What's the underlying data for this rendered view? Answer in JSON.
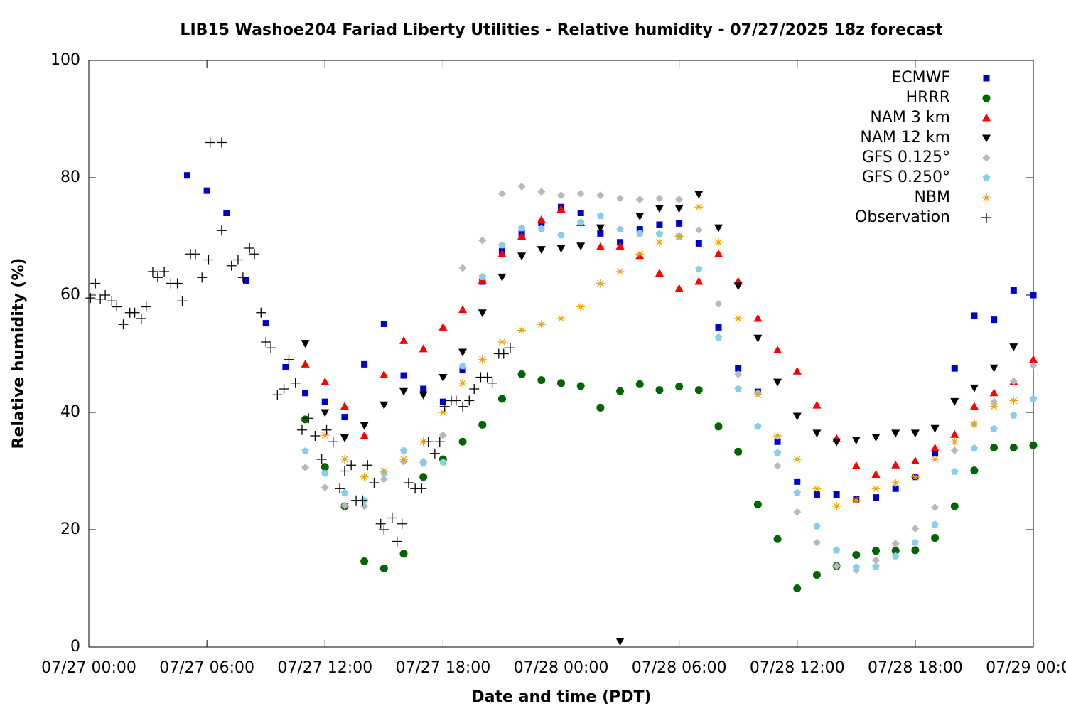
{
  "chart_data": {
    "type": "scatter",
    "title": "LIB15 Washoe204 Fariad Liberty Utilities - Relative humidity - 07/27/2025 18z forecast",
    "x_label": "Date and time (PDT)",
    "y_label": "Relative humidity (%)",
    "xlim": [
      "07/27 00:00",
      "07/29 00:00"
    ],
    "xticks": [
      "07/27 00:00",
      "07/27 06:00",
      "07/27 12:00",
      "07/27 18:00",
      "07/28 00:00",
      "07/28 06:00",
      "07/28 12:00",
      "07/28 18:00",
      "07/29 00:00"
    ],
    "ylim": [
      0,
      100
    ],
    "yticks": [
      0,
      20,
      40,
      60,
      80,
      100
    ],
    "grid": false,
    "legend": "top-right",
    "x": [
      "07/27 05:00",
      "07/27 06:00",
      "07/27 07:00",
      "07/27 08:00",
      "07/27 09:00",
      "07/27 10:00",
      "07/27 11:00",
      "07/27 12:00",
      "07/27 13:00",
      "07/27 14:00",
      "07/27 15:00",
      "07/27 16:00",
      "07/27 17:00",
      "07/27 18:00",
      "07/27 19:00",
      "07/27 20:00",
      "07/27 21:00",
      "07/27 22:00",
      "07/27 23:00",
      "07/28 00:00",
      "07/28 01:00",
      "07/28 02:00",
      "07/28 03:00",
      "07/28 04:00",
      "07/28 05:00",
      "07/28 06:00",
      "07/28 07:00",
      "07/28 08:00",
      "07/28 09:00",
      "07/28 10:00",
      "07/28 11:00",
      "07/28 12:00",
      "07/28 13:00",
      "07/28 14:00",
      "07/28 15:00",
      "07/28 16:00",
      "07/28 17:00",
      "07/28 18:00",
      "07/28 19:00",
      "07/28 20:00",
      "07/28 21:00",
      "07/28 22:00",
      "07/28 23:00",
      "07/29 00:00"
    ],
    "series": [
      {
        "name": "ECMWF",
        "color": "#0000cc",
        "marker": "square",
        "values": [
          80.4,
          77.8,
          74,
          62.5,
          55.2,
          47.7,
          43.3,
          41.8,
          39.2,
          48.2,
          55.1,
          46.3,
          44,
          41.8,
          47.2,
          62.3,
          67.5,
          70.5,
          72.3,
          75,
          74,
          70.5,
          69,
          71.2,
          72,
          72.2,
          68.8,
          54.5,
          47.5,
          43.5,
          35,
          28.2,
          26,
          26,
          25.2,
          25.5,
          27,
          29,
          33,
          47.5,
          56.5,
          55.8,
          60.8,
          60
        ]
      },
      {
        "name": "HRRR",
        "color": "#006400",
        "marker": "circle",
        "values": [
          null,
          null,
          null,
          null,
          null,
          null,
          38.8,
          30.7,
          24,
          14.6,
          13.4,
          15.9,
          29,
          32,
          35,
          37.9,
          42.3,
          46.5,
          45.5,
          45,
          44.5,
          40.8,
          43.6,
          44.8,
          43.8,
          44.4,
          43.8,
          37.6,
          33.3,
          24.3,
          18.4,
          10,
          12.3,
          13.8,
          15.7,
          16.4,
          16.4,
          16.5,
          18.6,
          24,
          30.1,
          34,
          34,
          34.4
        ]
      },
      {
        "name": "NAM 3 km",
        "color": "#ff0000",
        "marker": "triangle-up",
        "values": [
          null,
          null,
          null,
          null,
          null,
          null,
          48.2,
          45.2,
          41,
          36,
          46.4,
          52.2,
          50.8,
          54.5,
          57.5,
          62.5,
          67,
          70,
          72.8,
          74.6,
          72.3,
          68.2,
          68.3,
          66.7,
          63.7,
          61.1,
          62.3,
          67,
          62.3,
          56,
          50.6,
          47,
          41.2,
          35.5,
          30.9,
          29.4,
          31,
          31.7,
          33.9,
          36.2,
          41,
          43.3,
          45.2,
          49
        ]
      },
      {
        "name": "NAM 12 km",
        "color": "#000000",
        "marker": "triangle-down",
        "values": [
          null,
          null,
          null,
          null,
          null,
          null,
          51.8,
          40,
          35.7,
          37.8,
          41.3,
          43.6,
          43,
          46,
          50.3,
          57,
          63.1,
          66.7,
          67.8,
          68,
          68.4,
          71.5,
          1,
          73.5,
          74.8,
          74.8,
          77.2,
          71.5,
          61.6,
          52.7,
          45.2,
          39.4,
          36.5,
          35,
          35.3,
          35.8,
          36.5,
          36.5,
          37.3,
          41.9,
          44.2,
          47.6,
          51.2,
          null
        ]
      },
      {
        "name": "GFS 0.125°",
        "color": "#b8b8b8",
        "marker": "diamond",
        "values": [
          null,
          null,
          null,
          null,
          null,
          null,
          30.6,
          27.2,
          24.1,
          24,
          28.6,
          31.6,
          31.6,
          36.1,
          64.6,
          69.3,
          77.3,
          78.5,
          77.6,
          77,
          77.3,
          77,
          76.5,
          76.3,
          76.5,
          76.3,
          71.1,
          58.5,
          46.5,
          43.3,
          30.9,
          23,
          17.8,
          13.8,
          13.1,
          14.8,
          17.6,
          20.2,
          23.8,
          33.5,
          38,
          41.8,
          45.3,
          48
        ]
      },
      {
        "name": "GFS 0.250°",
        "color": "#87ceeb",
        "marker": "pentagon",
        "values": [
          null,
          null,
          null,
          null,
          null,
          null,
          33.4,
          29.6,
          26.3,
          25,
          29.7,
          33.5,
          31.3,
          31.5,
          47.9,
          63.1,
          68.5,
          71.4,
          71.3,
          70.2,
          72.4,
          73.5,
          71.2,
          70.5,
          70.4,
          70,
          64.4,
          52.8,
          44,
          37.6,
          33.1,
          26.3,
          20.6,
          16.5,
          13.6,
          13.7,
          15.5,
          17.8,
          20.9,
          29.9,
          33.9,
          37.2,
          39.5,
          42.3
        ]
      },
      {
        "name": "NBM",
        "color": "#f0a000",
        "marker": "asterisk",
        "values": [
          null,
          null,
          null,
          null,
          null,
          null,
          null,
          36.1,
          32,
          29,
          30,
          32,
          35,
          40,
          45,
          49,
          52,
          54,
          55,
          56,
          58,
          62,
          64,
          67,
          69,
          70,
          75,
          69,
          56,
          43,
          36,
          32,
          27,
          24,
          25,
          27,
          28,
          29,
          32,
          35,
          38,
          41,
          42,
          null
        ]
      },
      {
        "name": "Observation",
        "color": "#000000",
        "marker": "plus",
        "x": [
          "07/27 00:05",
          "07/27 00:20",
          "07/27 00:35",
          "07/27 00:50",
          "07/27 01:10",
          "07/27 01:25",
          "07/27 01:45",
          "07/27 02:05",
          "07/27 02:20",
          "07/27 02:40",
          "07/27 02:55",
          "07/27 03:15",
          "07/27 03:30",
          "07/27 03:50",
          "07/27 04:10",
          "07/27 04:30",
          "07/27 04:45",
          "07/27 05:10",
          "07/27 05:25",
          "07/27 05:45",
          "07/27 06:05",
          "07/27 06:10",
          "07/27 06:45",
          "07/27 06:45",
          "07/27 07:15",
          "07/27 07:35",
          "07/27 07:50",
          "07/27 08:10",
          "07/27 08:25",
          "07/27 08:45",
          "07/27 09:00",
          "07/27 09:15",
          "07/27 09:35",
          "07/27 09:55",
          "07/27 10:10",
          "07/27 10:30",
          "07/27 10:50",
          "07/27 11:10",
          "07/27 11:30",
          "07/27 11:50",
          "07/27 12:05",
          "07/27 12:25",
          "07/27 12:45",
          "07/27 13:00",
          "07/27 13:20",
          "07/27 13:35",
          "07/27 13:55",
          "07/27 14:10",
          "07/27 14:30",
          "07/27 14:50",
          "07/27 15:00",
          "07/27 15:25",
          "07/27 15:40",
          "07/27 15:55",
          "07/27 16:15",
          "07/27 16:35",
          "07/27 16:55",
          "07/27 17:15",
          "07/27 17:35",
          "07/27 17:50",
          "07/27 18:05",
          "07/27 18:25",
          "07/27 18:40",
          "07/27 19:00",
          "07/27 19:20",
          "07/27 19:35",
          "07/27 19:55",
          "07/27 20:15",
          "07/27 20:30",
          "07/27 20:50",
          "07/27 21:05",
          "07/27 21:25"
        ],
        "values": [
          59.5,
          62,
          59.3,
          60,
          59,
          58,
          55,
          57,
          57,
          56,
          58,
          64,
          63,
          64,
          62,
          62,
          59,
          67,
          67,
          63,
          66,
          86,
          86,
          71,
          65,
          66,
          63,
          68,
          67,
          57,
          52,
          51,
          43,
          44,
          49,
          45,
          37,
          39,
          36,
          32,
          37,
          35,
          27,
          30,
          31,
          25,
          25,
          31,
          28,
          21,
          20,
          22,
          18,
          21,
          28,
          27,
          27,
          35,
          33,
          35,
          41,
          42,
          42,
          41,
          42,
          44,
          46,
          46,
          45,
          50,
          50,
          51
        ]
      }
    ]
  }
}
